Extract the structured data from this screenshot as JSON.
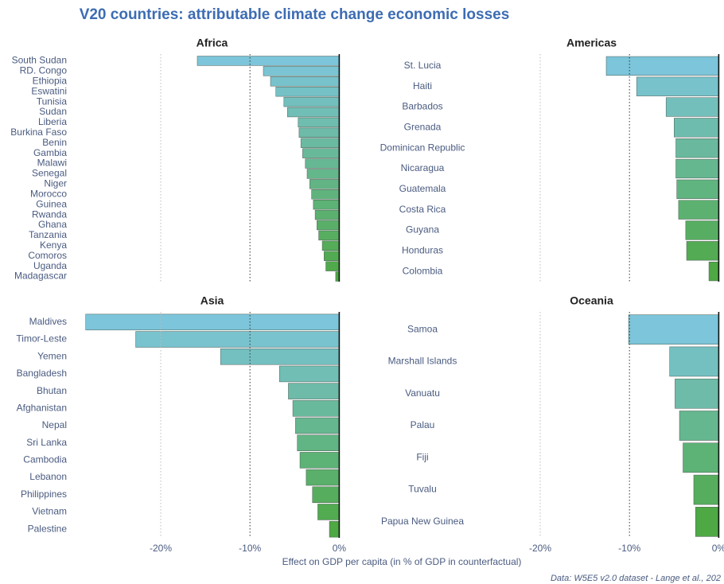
{
  "title": "V20 countries: attributable climate change economic losses",
  "x_label": "Effect on GDP per capita (in % of GDP in counterfactual)",
  "source": "Data: W5E5 v2.0 dataset - Lange et al., 202",
  "chart_data": [
    {
      "type": "bar",
      "orientation": "horizontal",
      "title": "Africa",
      "categories": [
        "South Sudan",
        "RD. Congo",
        "Ethiopia",
        "Eswatini",
        "Tunisia",
        "Sudan",
        "Liberia",
        "Burkina Faso",
        "Benin",
        "Gambia",
        "Malawi",
        "Senegal",
        "Niger",
        "Morocco",
        "Guinea",
        "Rwanda",
        "Ghana",
        "Tanzania",
        "Kenya",
        "Comoros",
        "Uganda",
        "Madagascar"
      ],
      "values": [
        -15.9,
        -8.5,
        -7.7,
        -7.1,
        -6.2,
        -5.8,
        -4.6,
        -4.5,
        -4.3,
        -4.1,
        -3.8,
        -3.6,
        -3.3,
        -3.1,
        -2.9,
        -2.7,
        -2.5,
        -2.3,
        -1.9,
        -1.7,
        -1.5,
        -0.4
      ],
      "color_range": [
        "#7cc5da",
        "#4ea844"
      ],
      "xlim": [
        -29,
        0.5
      ],
      "grid_lines": [
        -20,
        -10,
        0
      ]
    },
    {
      "type": "bar",
      "orientation": "horizontal",
      "title": "Americas",
      "categories": [
        "St. Lucia",
        "Haiti",
        "Barbados",
        "Grenada",
        "Dominican Republic",
        "Nicaragua",
        "Guatemala",
        "Costa Rica",
        "Guyana",
        "Honduras",
        "Colombia"
      ],
      "values": [
        -12.6,
        -9.2,
        -5.9,
        -5.0,
        -4.8,
        -4.8,
        -4.7,
        -4.5,
        -3.7,
        -3.6,
        -1.1
      ],
      "color_range": [
        "#7cc5da",
        "#4ea844"
      ],
      "xlim": [
        -29,
        0.5
      ],
      "grid_lines": [
        -20,
        -10,
        0
      ]
    },
    {
      "type": "bar",
      "orientation": "horizontal",
      "title": "Asia",
      "categories": [
        "Maldives",
        "Timor-Leste",
        "Yemen",
        "Bangladesh",
        "Bhutan",
        "Afghanistan",
        "Nepal",
        "Sri Lanka",
        "Cambodia",
        "Lebanon",
        "Philippines",
        "Vietnam",
        "Palestine"
      ],
      "values": [
        -28.4,
        -22.8,
        -13.3,
        -6.7,
        -5.7,
        -5.2,
        -4.9,
        -4.7,
        -4.4,
        -3.7,
        -3.0,
        -2.4,
        -1.1
      ],
      "color_range": [
        "#7cc5da",
        "#4ea844"
      ],
      "xlim": [
        -29,
        0.5
      ],
      "xticks": [
        {
          "value": -20,
          "label": "-20%"
        },
        {
          "value": -10,
          "label": "-10%"
        },
        {
          "value": 0,
          "label": "0%"
        }
      ]
    },
    {
      "type": "bar",
      "orientation": "horizontal",
      "title": "Oceania",
      "categories": [
        "Samoa",
        "Marshall Islands",
        "Vanuatu",
        "Palau",
        "Fiji",
        "Tuvalu",
        "Papua New Guinea"
      ],
      "values": [
        -10.1,
        -5.5,
        -4.9,
        -4.4,
        -4.0,
        -2.8,
        -2.6
      ],
      "color_range": [
        "#7cc5da",
        "#4ea844"
      ],
      "xlim": [
        -29,
        0.5
      ],
      "xticks": [
        {
          "value": -20,
          "label": "-20%"
        },
        {
          "value": -10,
          "label": "-10%"
        },
        {
          "value": 0,
          "label": "0%"
        }
      ]
    }
  ]
}
